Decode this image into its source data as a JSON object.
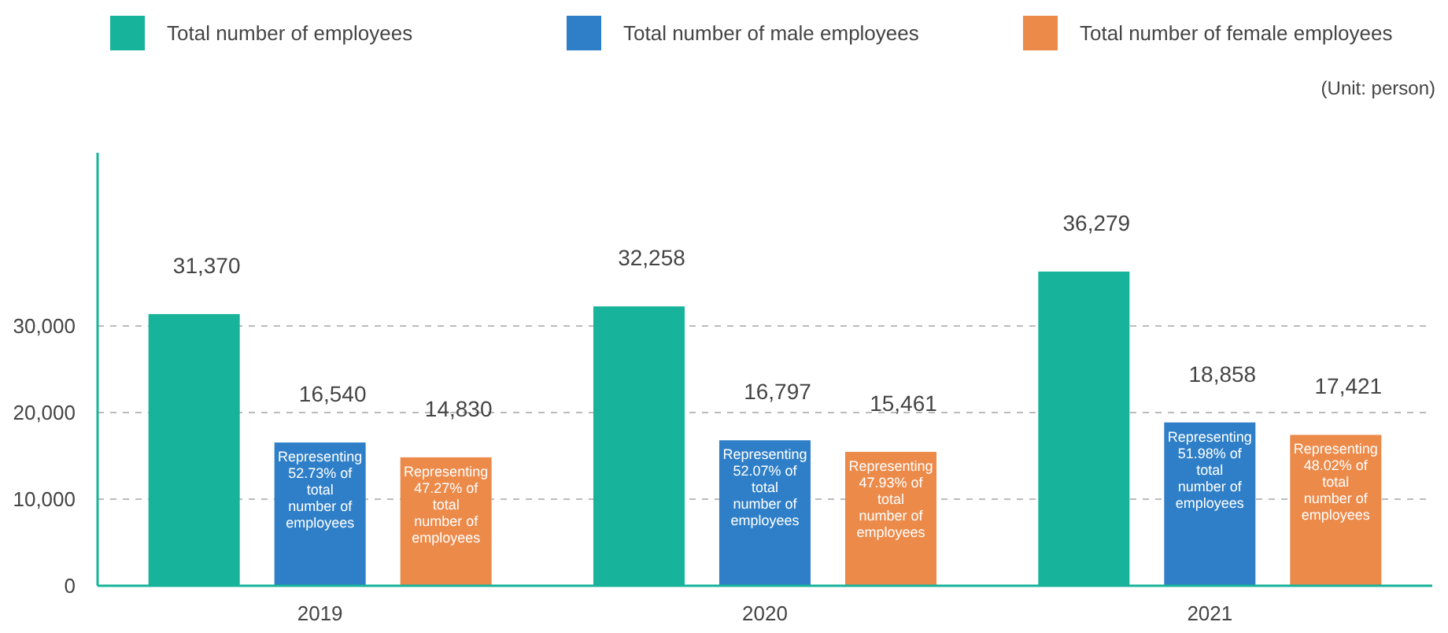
{
  "chart_data": {
    "type": "bar",
    "categories": [
      "2019",
      "2020",
      "2021"
    ],
    "series": [
      {
        "name": "Total number of employees",
        "color": "#17b39a",
        "values": [
          31370,
          32258,
          36279
        ],
        "value_labels": [
          "31,370",
          "32,258",
          "36,279"
        ]
      },
      {
        "name": "Total number of male employees",
        "color": "#2f7fc8",
        "values": [
          16540,
          16797,
          18858
        ],
        "value_labels": [
          "16,540",
          "16,797",
          "18,858"
        ]
      },
      {
        "name": "Total number of female employees",
        "color": "#ec8a4a",
        "values": [
          14830,
          15461,
          17421
        ],
        "value_labels": [
          "14,830",
          "15,461",
          "17,421"
        ]
      }
    ],
    "ylim": [
      0,
      50000
    ],
    "yticks": [
      {
        "value": 0,
        "label": "0"
      },
      {
        "value": 10000,
        "label": "10,000"
      },
      {
        "value": 20000,
        "label": "20,000"
      },
      {
        "value": 30000,
        "label": "30,000"
      }
    ],
    "grid": "y",
    "legend": "top",
    "annotations": [
      "Representing 52.73% of total number of employees",
      "Representing 47.27% of total number of employees",
      "Representing 52.07% of total number of employees",
      "Representing 47.93% of total number of employees",
      "Representing 51.98% of total number of employees",
      "Representing 48.02% of total number of employees",
      "(Unit: person)"
    ]
  }
}
